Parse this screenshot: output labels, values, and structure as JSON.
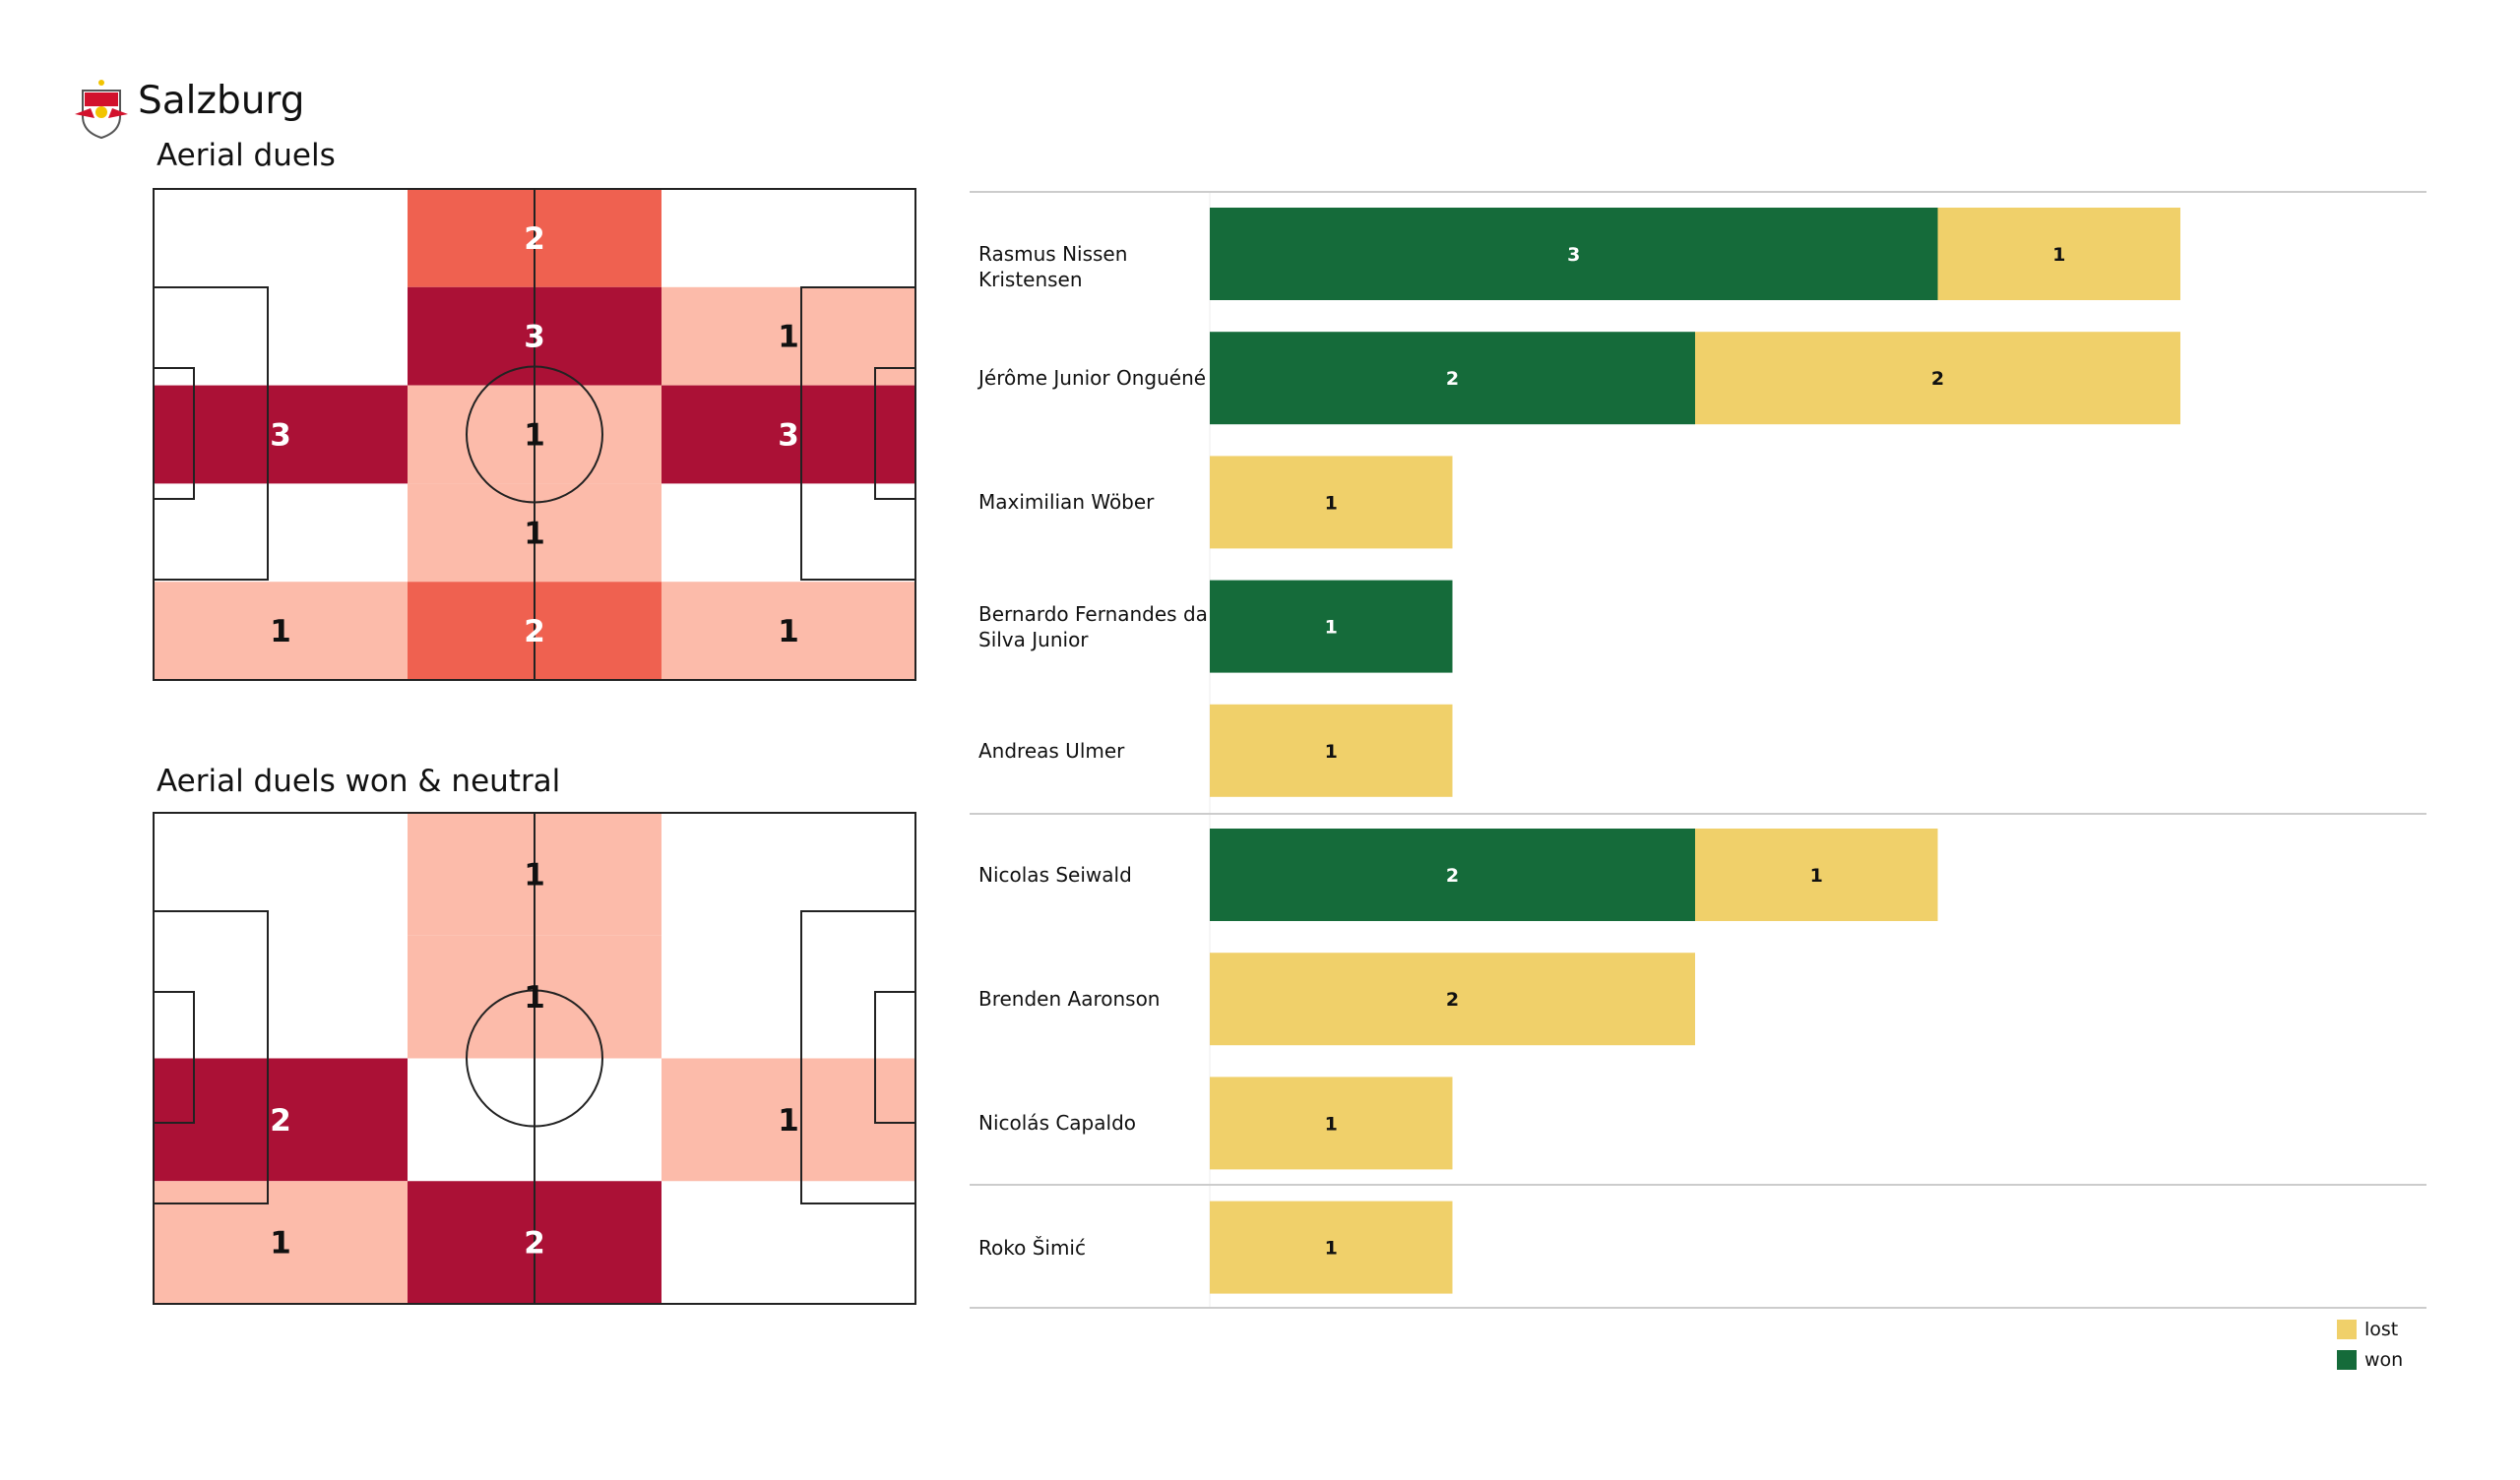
{
  "header": {
    "team": "Salzburg",
    "logo_icon": "red-bull-salzburg-crest-icon"
  },
  "colors": {
    "dark": "#ab1136",
    "mid": "#ef6150",
    "light": "#fcbbaa",
    "won": "#156b3a",
    "lost": "#f0d06a"
  },
  "chart_data": [
    {
      "type": "heatmap",
      "title": "Aerial duels",
      "rows": 5,
      "cols": 3,
      "values": [
        [
          0,
          2,
          0
        ],
        [
          0,
          3,
          1
        ],
        [
          3,
          1,
          3
        ],
        [
          0,
          1,
          0
        ],
        [
          1,
          2,
          1
        ]
      ]
    },
    {
      "type": "heatmap",
      "title": "Aerial duels won & neutral",
      "rows": 4,
      "cols": 3,
      "values": [
        [
          0,
          1,
          0
        ],
        [
          0,
          1,
          0
        ],
        [
          2,
          0,
          1
        ],
        [
          1,
          2,
          0
        ]
      ]
    },
    {
      "type": "bar",
      "orientation": "horizontal-stacked",
      "legend": [
        "lost",
        "won"
      ],
      "legend_position": "bottom-right",
      "players": [
        {
          "name": "Rasmus Nissen Kristensen",
          "won": 3,
          "lost": 1,
          "group": 0
        },
        {
          "name": "Jérôme Junior Onguéné",
          "won": 2,
          "lost": 2,
          "group": 0
        },
        {
          "name": "Maximilian Wöber",
          "won": 0,
          "lost": 1,
          "group": 0
        },
        {
          "name": "Bernardo Fernandes da Silva Junior",
          "won": 1,
          "lost": 0,
          "group": 0
        },
        {
          "name": "Andreas Ulmer",
          "won": 0,
          "lost": 1,
          "group": 0
        },
        {
          "name": "Nicolas Seiwald",
          "won": 2,
          "lost": 1,
          "group": 1
        },
        {
          "name": "Brenden  Aaronson",
          "won": 0,
          "lost": 2,
          "group": 1
        },
        {
          "name": "Nicolás Capaldo",
          "won": 0,
          "lost": 1,
          "group": 1
        },
        {
          "name": "Roko Šimić",
          "won": 0,
          "lost": 1,
          "group": 2
        }
      ]
    }
  ]
}
